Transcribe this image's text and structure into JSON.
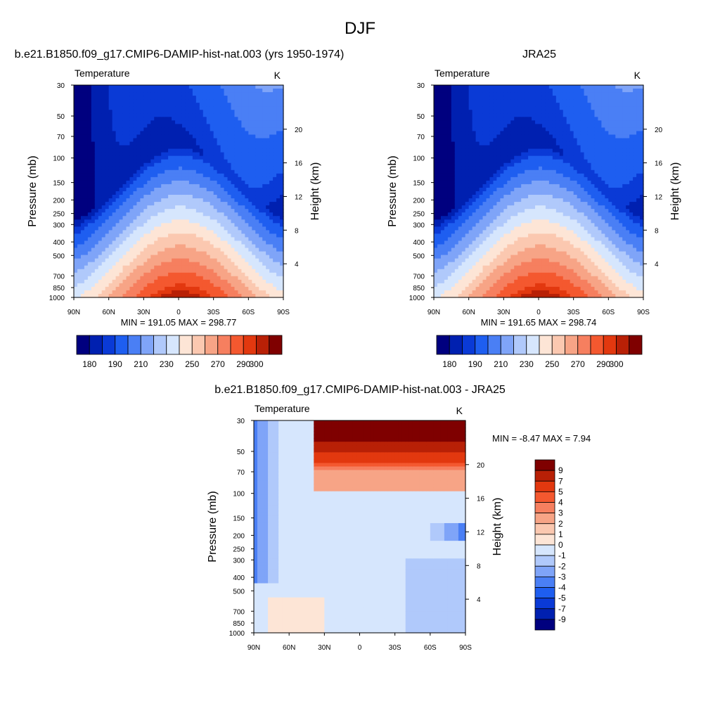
{
  "page_title": "DJF",
  "chart_data": [
    {
      "type": "heatmap",
      "id": "model",
      "title": "b.e21.B1850.f09_g17.CMIP6-DAMIP-hist-nat.003 (yrs 1950-1974)",
      "variable": "Temperature",
      "units": "K",
      "ylabel": "Pressure (mb)",
      "ylabel_right": "Height (km)",
      "x_ticks": [
        "90N",
        "60N",
        "30N",
        "0",
        "30S",
        "60S",
        "90S"
      ],
      "y_ticks": [
        30,
        50,
        70,
        100,
        150,
        200,
        250,
        300,
        400,
        500,
        700,
        850,
        1000
      ],
      "y_right_ticks": [
        4,
        8,
        12,
        16,
        20
      ],
      "xlim": [
        90,
        -90
      ],
      "ylim": [
        1000,
        30
      ],
      "y_scale": "log",
      "stats": "MIN = 191.05  MAX = 298.77",
      "min": 191.05,
      "max": 298.77,
      "colorbar_labels": [
        "180",
        "190",
        "210",
        "230",
        "250",
        "270",
        "290",
        "300"
      ],
      "colorbar_orientation": "horizontal"
    },
    {
      "type": "heatmap",
      "id": "obs",
      "title": "JRA25",
      "variable": "Temperature",
      "units": "K",
      "ylabel": "Pressure (mb)",
      "ylabel_right": "Height (km)",
      "x_ticks": [
        "90N",
        "60N",
        "30N",
        "0",
        "30S",
        "60S",
        "90S"
      ],
      "y_ticks": [
        30,
        50,
        70,
        100,
        150,
        200,
        250,
        300,
        400,
        500,
        700,
        850,
        1000
      ],
      "y_right_ticks": [
        4,
        8,
        12,
        16,
        20
      ],
      "xlim": [
        90,
        -90
      ],
      "ylim": [
        1000,
        30
      ],
      "y_scale": "log",
      "stats": "MIN = 191.65  MAX = 298.74",
      "min": 191.65,
      "max": 298.74,
      "colorbar_labels": [
        "180",
        "190",
        "210",
        "230",
        "250",
        "270",
        "290",
        "300"
      ],
      "colorbar_orientation": "horizontal"
    },
    {
      "type": "heatmap",
      "id": "diff",
      "title": "b.e21.B1850.f09_g17.CMIP6-DAMIP-hist-nat.003 - JRA25",
      "variable": "Temperature",
      "units": "K",
      "ylabel": "Pressure (mb)",
      "ylabel_right": "Height (km)",
      "x_ticks": [
        "90N",
        "60N",
        "30N",
        "0",
        "30S",
        "60S",
        "90S"
      ],
      "y_ticks": [
        30,
        50,
        70,
        100,
        150,
        200,
        250,
        300,
        400,
        500,
        700,
        850,
        1000
      ],
      "y_right_ticks": [
        4,
        8,
        12,
        16,
        20
      ],
      "xlim": [
        90,
        -90
      ],
      "ylim": [
        1000,
        30
      ],
      "y_scale": "log",
      "stats": "MIN =  -8.47  MAX =   7.94",
      "min": -8.47,
      "max": 7.94,
      "colorbar_labels": [
        "9",
        "7",
        "5",
        "4",
        "3",
        "2",
        "1",
        "0",
        "-1",
        "-2",
        "-3",
        "-4",
        "-5",
        "-7",
        "-9"
      ],
      "colorbar_orientation": "vertical"
    }
  ],
  "colors": {
    "temp_levels": [
      "#00007f",
      "#0020b0",
      "#0a3ad6",
      "#1e5ef0",
      "#4a7ff5",
      "#7fa4f8",
      "#b0c9fb",
      "#d6e6fd",
      "#fde5d6",
      "#fbc8b0",
      "#f7a486",
      "#f67f5f",
      "#f4582f",
      "#e2380f",
      "#b82006",
      "#7f0000"
    ],
    "diff_levels": [
      "#00007f",
      "#0020b0",
      "#0a3ad6",
      "#1e5ef0",
      "#4a7ff5",
      "#7fa4f8",
      "#b0c9fb",
      "#d6e6fd",
      "#fde5d6",
      "#fbc8b0",
      "#f7a486",
      "#f67f5f",
      "#f4582f",
      "#e2380f",
      "#b82006",
      "#7f0000"
    ]
  }
}
